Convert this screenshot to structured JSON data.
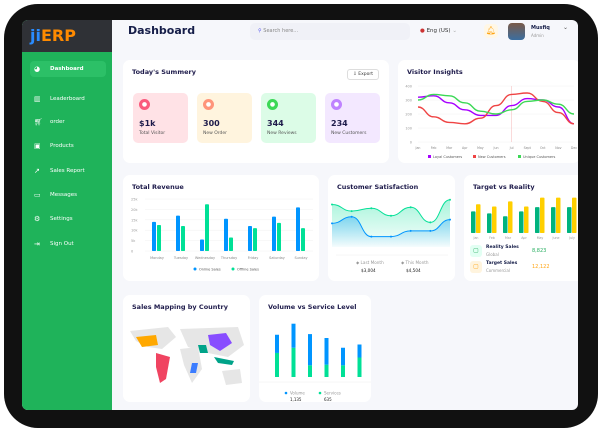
{
  "app": {
    "logo": "jiERP",
    "logo_j": "ji",
    "logo_e": "ERP"
  },
  "sidebar": {
    "items": [
      {
        "label": "Dashboard",
        "icon": "pie-chart-icon",
        "active": true
      },
      {
        "label": "Leaderboard",
        "icon": "bar-chart-icon"
      },
      {
        "label": "order",
        "icon": "cart-icon"
      },
      {
        "label": "Products",
        "icon": "bag-icon"
      },
      {
        "label": "Sales Report",
        "icon": "line-chart-icon"
      },
      {
        "label": "Messages",
        "icon": "message-icon"
      },
      {
        "label": "Settings",
        "icon": "gear-icon"
      },
      {
        "label": "Sign Out",
        "icon": "sign-out-icon"
      }
    ]
  },
  "header": {
    "title": "Dashboard",
    "search_placeholder": "Search here...",
    "language": "Eng (US)",
    "user_name": "Musfiq",
    "user_role": "Admin"
  },
  "summary": {
    "title": "Today's Summery",
    "export_label": "Export",
    "tiles": [
      {
        "value": "$1k",
        "label": "Total Visitor",
        "bg": "#ffe2e6",
        "icon_bg": "#fa5a7d"
      },
      {
        "value": "300",
        "label": "New Order",
        "bg": "#fff4de",
        "icon_bg": "#ff947a"
      },
      {
        "value": "344",
        "label": "New Reviews",
        "bg": "#dcfce7",
        "icon_bg": "#3cd856"
      },
      {
        "value": "234",
        "label": "New Customers",
        "bg": "#f3e8ff",
        "icon_bg": "#bf83ff"
      }
    ]
  },
  "chart_data": [
    {
      "id": "visitor",
      "type": "line",
      "title": "Visitor Insights",
      "categories": [
        "Jan",
        "Feb",
        "Mar",
        "Apr",
        "May",
        "Jun",
        "Jul",
        "Sept",
        "Oct",
        "Nov",
        "Dec"
      ],
      "ylim": [
        0,
        400
      ],
      "yticks": [
        0,
        100,
        200,
        300,
        400
      ],
      "series": [
        {
          "name": "Loyal Customers",
          "color": "#a700ff",
          "values": [
            320,
            330,
            280,
            230,
            190,
            190,
            260,
            310,
            300,
            250,
            130
          ]
        },
        {
          "name": "New Customers",
          "color": "#ef4444",
          "values": [
            250,
            180,
            140,
            130,
            170,
            260,
            340,
            350,
            290,
            210,
            130
          ]
        },
        {
          "name": "Unique Customers",
          "color": "#3cd856",
          "values": [
            300,
            340,
            330,
            280,
            220,
            200,
            230,
            290,
            300,
            270,
            200
          ]
        }
      ],
      "legend": "bottom"
    },
    {
      "id": "revenue",
      "type": "bar",
      "title": "Total Revenue",
      "categories": [
        "Monday",
        "Tuesday",
        "Wednesday",
        "Thursday",
        "Friday",
        "Saturday",
        "Sunday"
      ],
      "ylim": [
        0,
        25
      ],
      "yticks": [
        "0",
        "5k",
        "10k",
        "15k",
        "20k",
        "25k"
      ],
      "series": [
        {
          "name": "Online Sales",
          "color": "#0095ff",
          "values": [
            14,
            17,
            5.5,
            15.5,
            12,
            16.5,
            21
          ]
        },
        {
          "name": "Offline Sales",
          "color": "#00e096",
          "values": [
            12.5,
            12,
            22.5,
            6.5,
            11,
            13.5,
            11
          ]
        }
      ],
      "legend": "bottom"
    },
    {
      "id": "satisfaction",
      "type": "area",
      "title": "Customer Satisfaction",
      "series": [
        {
          "name": "Last Month",
          "color": "#0095ff",
          "values": [
            2.5,
            3.2,
            1.1,
            1.1,
            1.7,
            1.7,
            2.9
          ],
          "total": "$3,004"
        },
        {
          "name": "This Month",
          "color": "#07e098",
          "values": [
            4.5,
            3.8,
            4.1,
            3.3,
            4.2,
            2.6,
            5.0
          ],
          "total": "$4,504"
        }
      ]
    },
    {
      "id": "target",
      "type": "bar",
      "title": "Target vs Reality",
      "categories": [
        "Jan",
        "Feb",
        "Mar",
        "Apr",
        "May",
        "June",
        "July"
      ],
      "series": [
        {
          "name": "Reality Sales",
          "color": "#00b37e",
          "values": [
            7.5,
            6.8,
            5.8,
            7.5,
            9,
            9,
            9
          ]
        },
        {
          "name": "Target Sales",
          "color": "#ffcf00",
          "values": [
            10,
            9.2,
            11,
            9.2,
            12.3,
            12.3,
            12.3
          ]
        }
      ]
    },
    {
      "id": "volume",
      "type": "stacked-bar",
      "title": "Volume vs Service Level",
      "series": [
        {
          "name": "Volume",
          "color": "#0095ff",
          "values": [
            28,
            37,
            48,
            41,
            27,
            20
          ],
          "total": "1,135"
        },
        {
          "name": "Services",
          "color": "#00e096",
          "values": [
            37,
            45,
            18,
            19,
            18,
            30
          ],
          "total": "635"
        }
      ]
    }
  ],
  "target_legend": [
    {
      "label": "Reality Sales",
      "sub": "Global",
      "value": "8,823",
      "color": "#27ae60",
      "bg": "#e2fff3"
    },
    {
      "label": "Target Sales",
      "sub": "Commercial",
      "value": "12,122",
      "color": "#ffa412",
      "bg": "#fff4de"
    }
  ],
  "map": {
    "title": "Sales Mapping by Country"
  }
}
